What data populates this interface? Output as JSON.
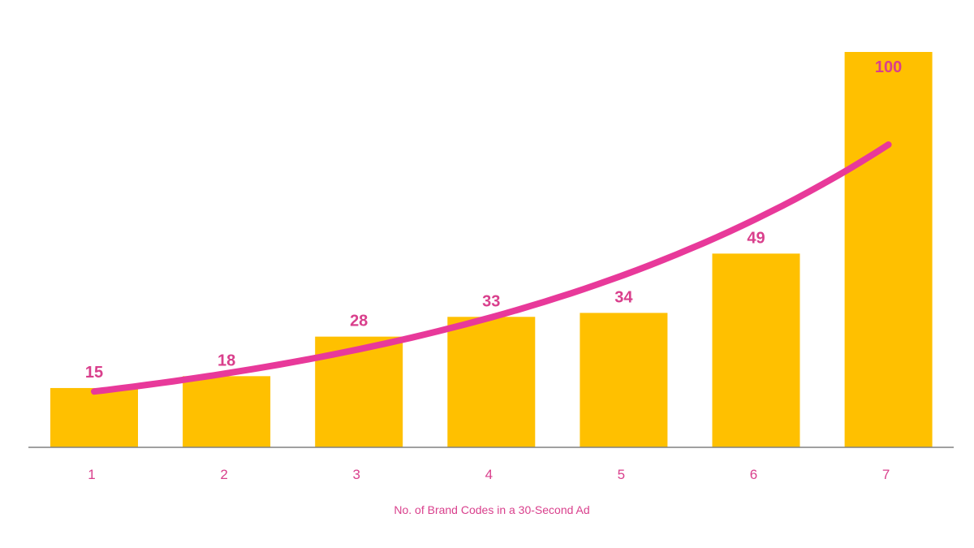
{
  "colors": {
    "bar": "#FFC000",
    "trend": "#E8399A",
    "label": "#D93F8C",
    "axis": "#808080",
    "axis_text": "#D93F8C"
  },
  "chart_data": {
    "type": "bar",
    "title": "",
    "xlabel": "No. of Brand Codes in a 30-Second Ad",
    "ylabel": "",
    "categories": [
      "1",
      "2",
      "3",
      "4",
      "5",
      "6",
      "7"
    ],
    "values": [
      15,
      18,
      28,
      33,
      34,
      49,
      100
    ],
    "data_labels": [
      "15",
      "18",
      "28",
      "33",
      "34",
      "49",
      "100"
    ],
    "ylim": [
      0,
      100
    ],
    "grid": false,
    "legend": null,
    "trendline": {
      "type": "exponential",
      "color": "#E8399A"
    }
  }
}
